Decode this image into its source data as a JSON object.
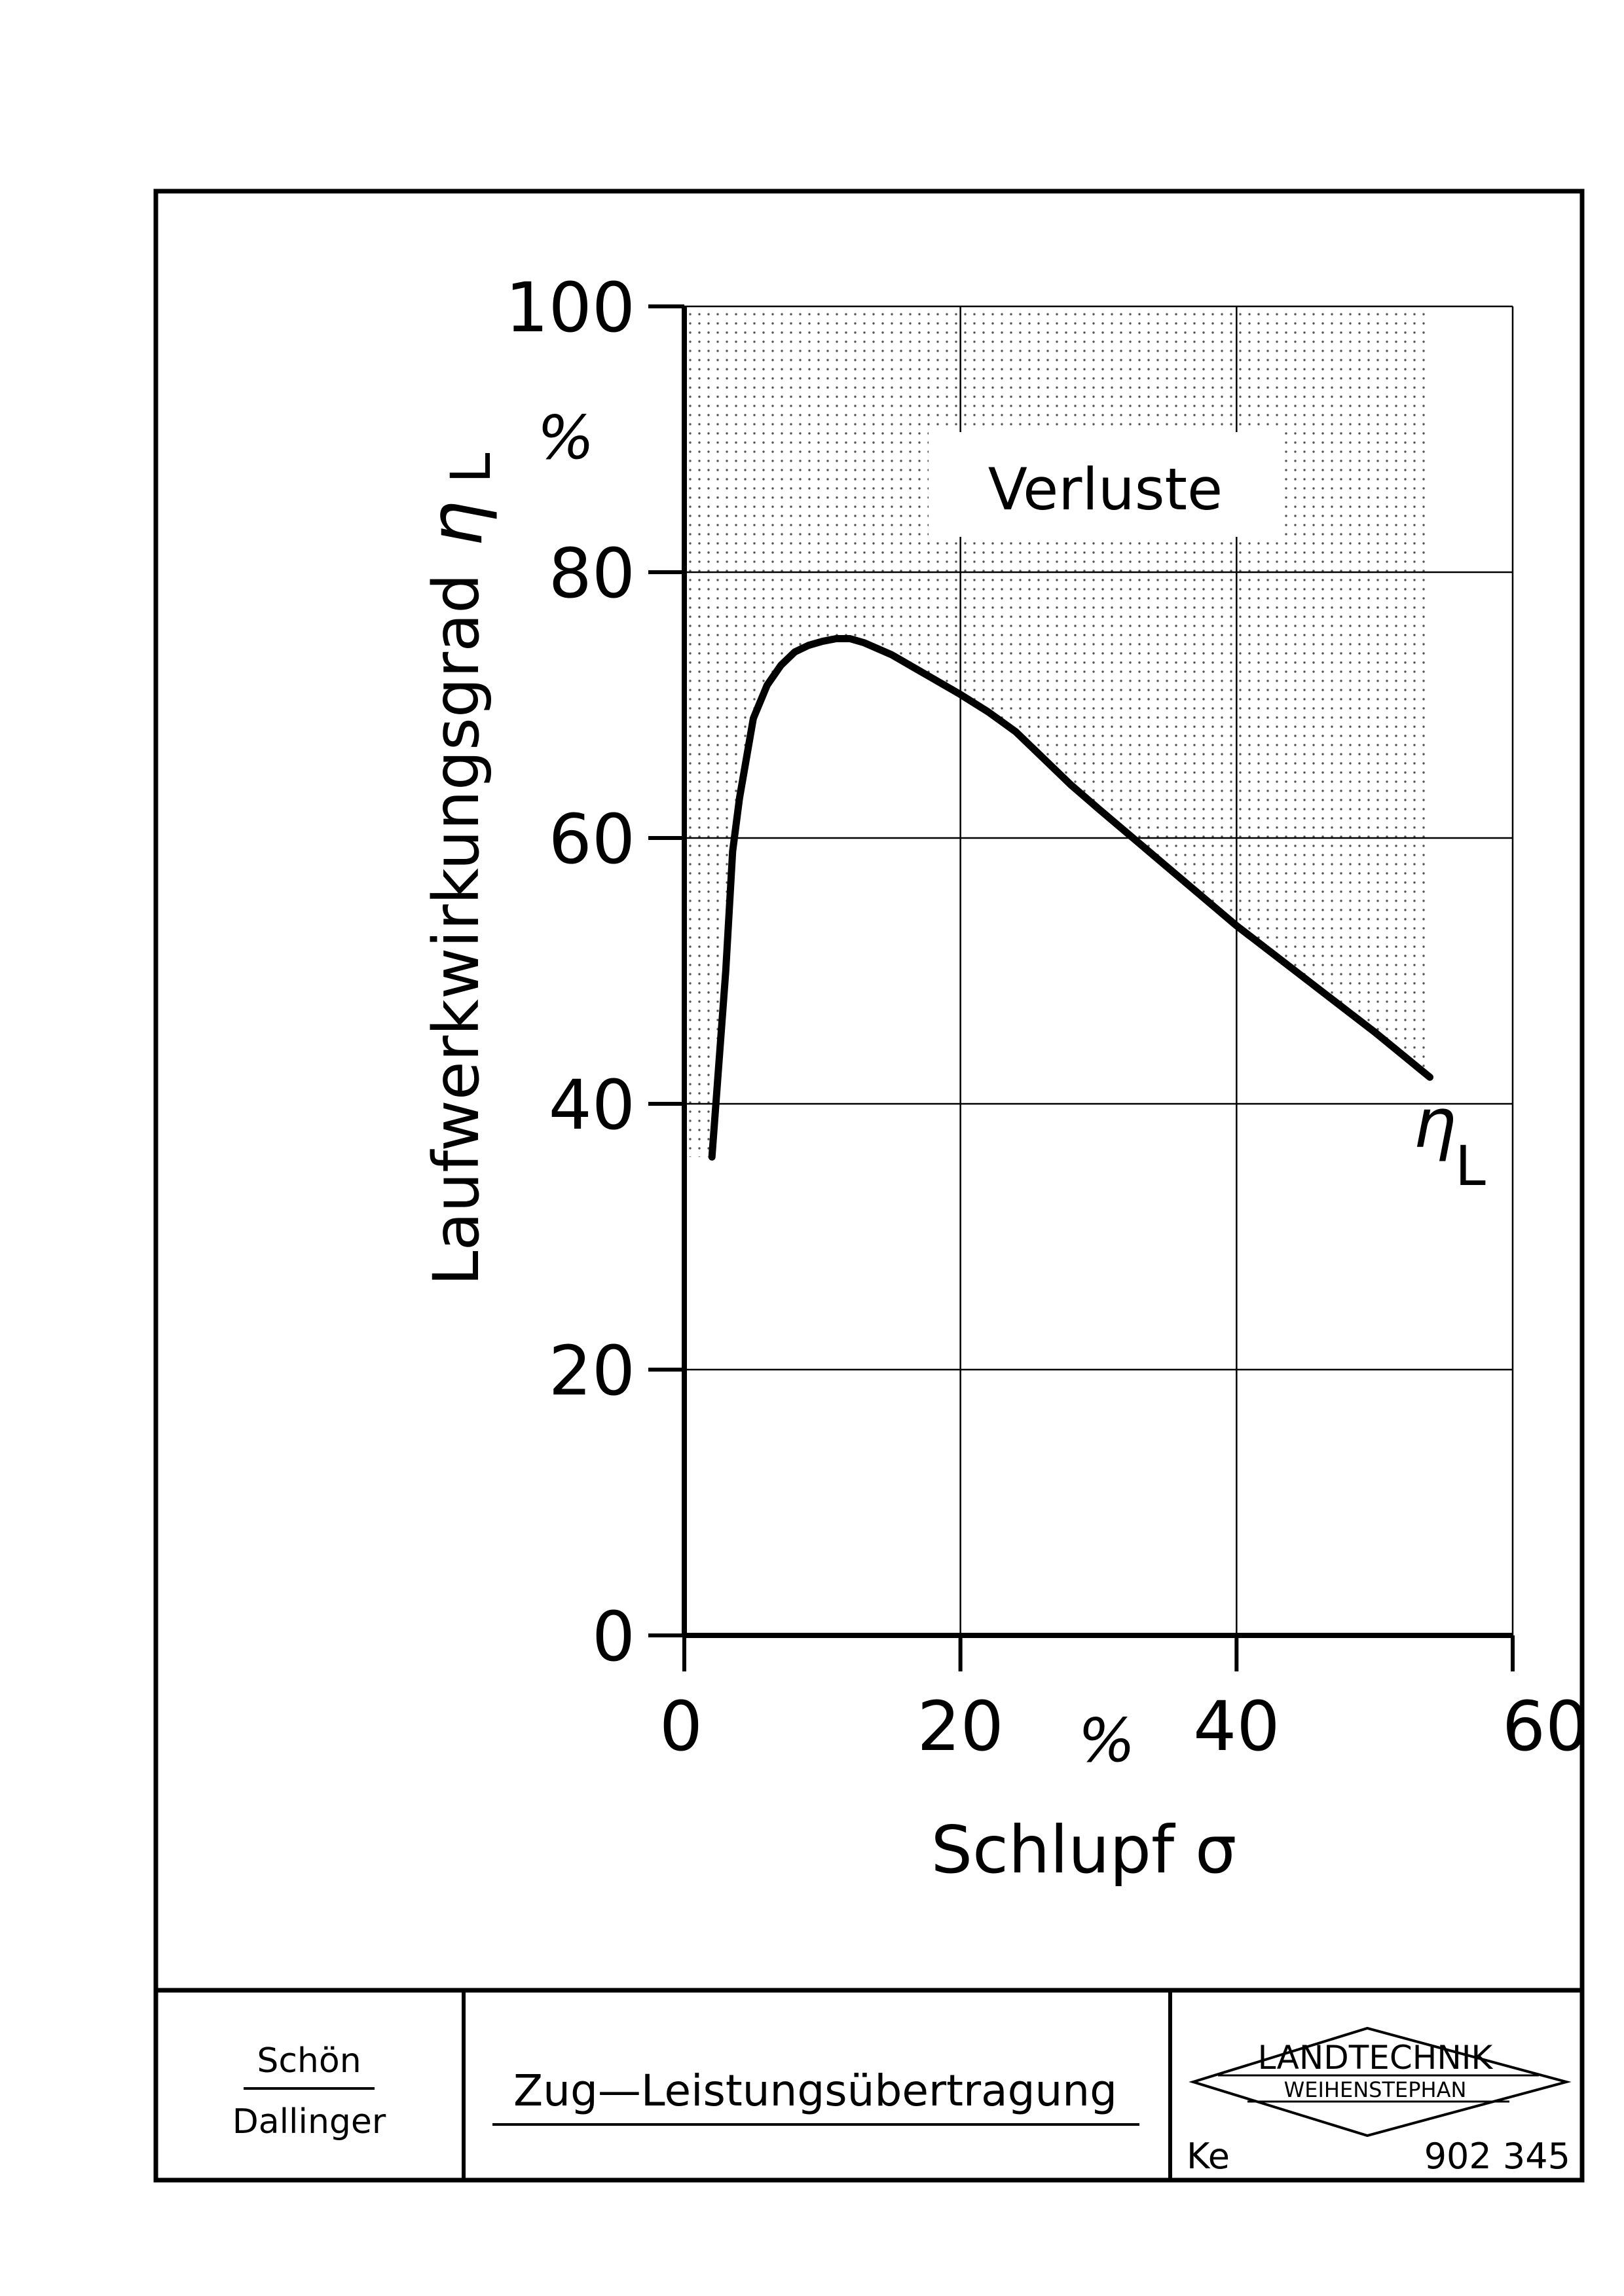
{
  "chart_data": {
    "type": "line",
    "xlabel": "Schlupf σ",
    "x_unit": "%",
    "ylabel": "Laufwerkwirkungsgrad",
    "y_symbol": "η",
    "y_symbol_sub": "L",
    "y_unit": "%",
    "xlim": [
      0,
      60
    ],
    "ylim": [
      0,
      100
    ],
    "x_ticks": [
      "0",
      "20",
      "40",
      "60"
    ],
    "y_ticks": [
      "0",
      "20",
      "40",
      "60",
      "80",
      "100"
    ],
    "grid": true,
    "shaded_region_label": "Verluste",
    "series": [
      {
        "label_symbol": "η",
        "label_sub": "L",
        "x": [
          2,
          3,
          3.5,
          4,
          5,
          6,
          7,
          8,
          9,
          10,
          11,
          12,
          13,
          15,
          18,
          20,
          22,
          24,
          26,
          28,
          30,
          35,
          40,
          45,
          50,
          54
        ],
        "y": [
          36,
          50,
          59,
          63,
          69,
          71.5,
          73,
          74,
          74.5,
          74.8,
          75,
          75,
          74.7,
          73.8,
          72,
          70.8,
          69.5,
          68,
          66,
          64,
          62.2,
          57.8,
          53.4,
          49.4,
          45.4,
          42
        ]
      }
    ]
  },
  "title_block": {
    "authors": [
      "Schön",
      "Dallinger"
    ],
    "title": "Zug—Leistungsübertragung",
    "logo_line1": "LANDTECHNIK",
    "logo_line2": "WEIHENSTEPHAN",
    "code_left": "Ke",
    "code_number": "902 345"
  }
}
